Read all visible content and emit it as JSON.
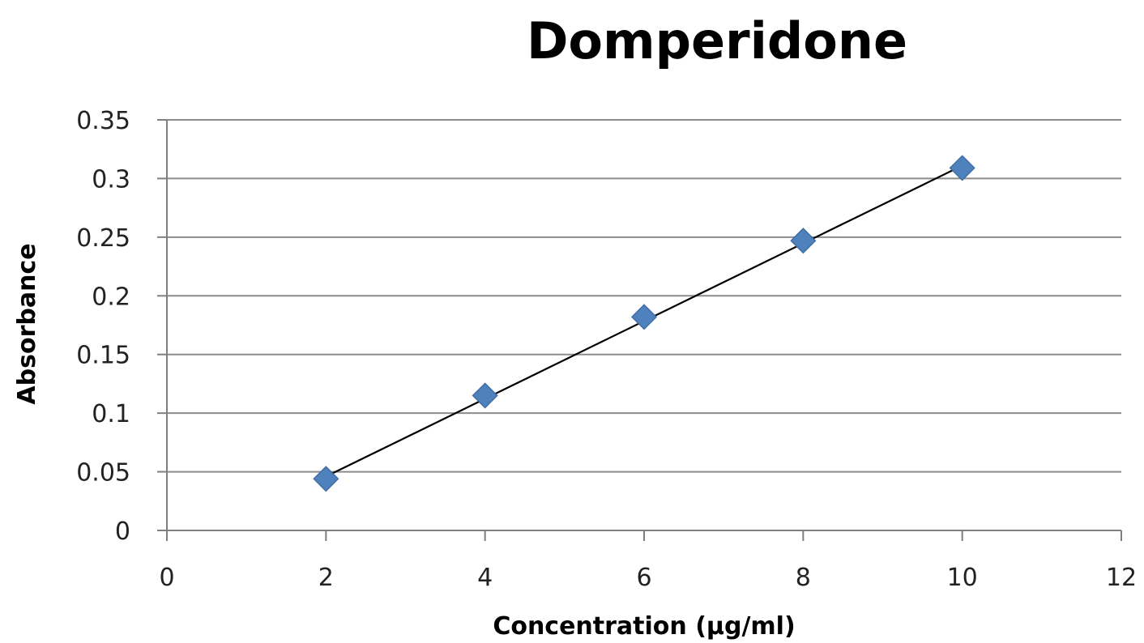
{
  "chart_data": {
    "type": "scatter",
    "title": "Domperidone",
    "xlabel": "Concentration (µg/ml)",
    "ylabel": "Absorbance",
    "xlim": [
      0,
      12
    ],
    "ylim": [
      0,
      0.35
    ],
    "x_ticks": [
      "0",
      "2",
      "4",
      "6",
      "8",
      "10",
      "12"
    ],
    "y_ticks": [
      "0",
      "0.05",
      "0.1",
      "0.15",
      "0.2",
      "0.25",
      "0.3",
      "0.35"
    ],
    "grid": "horizontal",
    "legend": "none",
    "series": [
      {
        "x": [
          2,
          4,
          6,
          8,
          10
        ],
        "y": [
          0.044,
          0.115,
          0.182,
          0.247,
          0.309
        ],
        "color": "#4f81bd",
        "marker": "diamond"
      }
    ],
    "trendline": {
      "type": "linear",
      "x_range": [
        2,
        10
      ],
      "y_range": [
        0.046,
        0.311
      ],
      "color": "#000000"
    }
  }
}
